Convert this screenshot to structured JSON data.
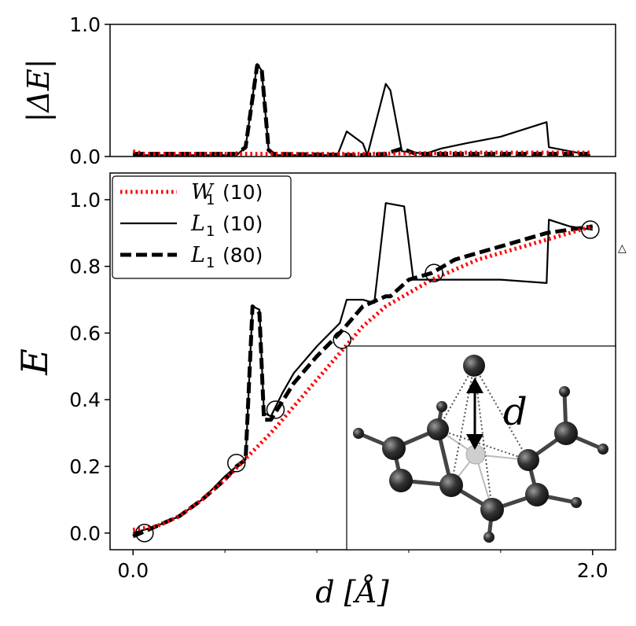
{
  "chart_data": [
    {
      "type": "line",
      "panel": "top",
      "ylabel": "|ΔE|",
      "xlim": [
        -0.1,
        2.1
      ],
      "ylim": [
        0.0,
        1.0
      ],
      "yticks": [
        0.0,
        1.0
      ],
      "ytick_labels": [
        "0.0",
        "1.0"
      ],
      "series": [
        {
          "name": "W1 (10)",
          "color": "#ff0000",
          "style": "dotted",
          "x": [
            0.0,
            0.05,
            0.1,
            0.5,
            1.0,
            1.5,
            2.0
          ],
          "y": [
            0.04,
            0.02,
            0.02,
            0.02,
            0.02,
            0.03,
            0.03
          ]
        },
        {
          "name": "L1 (10)",
          "color": "#000000",
          "style": "solid",
          "x": [
            0.0,
            0.45,
            0.49,
            0.54,
            0.56,
            0.59,
            0.61,
            0.66,
            0.68,
            0.89,
            0.93,
            1.0,
            1.02,
            1.1,
            1.12,
            1.17,
            1.23,
            1.27,
            1.34,
            1.45,
            1.6,
            1.8,
            1.81,
            1.99
          ],
          "y": [
            0.01,
            0.01,
            0.07,
            0.7,
            0.65,
            0.05,
            0.01,
            0.01,
            0.01,
            0.01,
            0.19,
            0.1,
            0.01,
            0.55,
            0.5,
            0.04,
            0.03,
            0.02,
            0.06,
            0.1,
            0.15,
            0.26,
            0.07,
            0.01
          ]
        },
        {
          "name": "L1 (80)",
          "color": "#000000",
          "style": "dashed",
          "x": [
            0.0,
            0.45,
            0.49,
            0.54,
            0.56,
            0.59,
            0.61,
            1.0,
            1.1,
            1.17,
            1.23,
            1.3,
            1.45,
            1.99
          ],
          "y": [
            0.02,
            0.02,
            0.07,
            0.69,
            0.66,
            0.05,
            0.02,
            0.01,
            0.02,
            0.06,
            0.02,
            0.02,
            0.02,
            0.02
          ]
        }
      ]
    },
    {
      "type": "line",
      "panel": "bottom",
      "xlabel": "d [Å]",
      "ylabel": "E",
      "xlim": [
        -0.1,
        2.1
      ],
      "ylim": [
        -0.05,
        1.08
      ],
      "xticks": [
        0.0,
        2.0
      ],
      "xtick_labels": [
        "0.0",
        "2.0"
      ],
      "minor_xticks": [
        0.4,
        0.8,
        1.2,
        1.6
      ],
      "yticks": [
        0.0,
        0.2,
        0.4,
        0.6,
        0.8,
        1.0
      ],
      "ytick_labels": [
        "0.0",
        "0.2",
        "0.4",
        "0.6",
        "0.8",
        "1.0"
      ],
      "legend_position": "top-left",
      "legend": [
        {
          "label": "W",
          "sub": "1",
          "suffix": "(10)",
          "style": "dotted",
          "color": "#ff0000"
        },
        {
          "label": "L",
          "sub": "1",
          "suffix": "(10)",
          "style": "solid",
          "color": "#000000"
        },
        {
          "label": "L",
          "sub": "1",
          "suffix": "(80)",
          "style": "dashed",
          "color": "#000000"
        }
      ],
      "series": [
        {
          "name": "W1 (10)",
          "color": "#ff0000",
          "style": "dotted",
          "x": [
            0.0,
            0.1,
            0.2,
            0.3,
            0.4,
            0.5,
            0.6,
            0.7,
            0.8,
            0.9,
            1.0,
            1.1,
            1.2,
            1.3,
            1.4,
            1.5,
            1.6,
            1.7,
            1.8,
            1.9,
            2.0
          ],
          "y": [
            0.01,
            0.02,
            0.05,
            0.1,
            0.16,
            0.23,
            0.3,
            0.38,
            0.46,
            0.54,
            0.62,
            0.68,
            0.72,
            0.76,
            0.79,
            0.82,
            0.84,
            0.86,
            0.88,
            0.9,
            0.92
          ]
        },
        {
          "name": "L1 (10)",
          "color": "#000000",
          "style": "solid",
          "x": [
            0.0,
            0.1,
            0.2,
            0.3,
            0.4,
            0.45,
            0.49,
            0.52,
            0.55,
            0.57,
            0.6,
            0.65,
            0.7,
            0.8,
            0.9,
            0.93,
            1.0,
            1.05,
            1.1,
            1.18,
            1.22,
            1.3,
            1.45,
            1.6,
            1.8,
            1.81,
            1.9,
            2.0
          ],
          "y": [
            0.0,
            0.02,
            0.05,
            0.1,
            0.17,
            0.2,
            0.22,
            0.68,
            0.67,
            0.36,
            0.35,
            0.42,
            0.48,
            0.56,
            0.63,
            0.7,
            0.7,
            0.69,
            0.99,
            0.98,
            0.76,
            0.76,
            0.76,
            0.76,
            0.75,
            0.94,
            0.92,
            0.91
          ]
        },
        {
          "name": "L1 (80)",
          "color": "#000000",
          "style": "dashed",
          "x": [
            0.0,
            0.1,
            0.2,
            0.3,
            0.4,
            0.45,
            0.49,
            0.52,
            0.55,
            0.57,
            0.6,
            0.7,
            0.8,
            0.9,
            1.0,
            1.1,
            1.12,
            1.2,
            1.3,
            1.4,
            1.5,
            1.6,
            1.7,
            1.8,
            1.9,
            2.0
          ],
          "y": [
            -0.01,
            0.02,
            0.05,
            0.1,
            0.16,
            0.2,
            0.22,
            0.68,
            0.66,
            0.34,
            0.34,
            0.45,
            0.53,
            0.6,
            0.68,
            0.71,
            0.71,
            0.76,
            0.78,
            0.82,
            0.84,
            0.86,
            0.88,
            0.9,
            0.91,
            0.92
          ]
        }
      ],
      "markers": {
        "style": "open-circle",
        "x": [
          0.05,
          0.45,
          0.62,
          0.91,
          1.31,
          1.99
        ],
        "y": [
          0.0,
          0.21,
          0.37,
          0.58,
          0.78,
          0.91
        ]
      },
      "annotation_symbol": "△",
      "inset": {
        "label": "d"
      }
    }
  ]
}
